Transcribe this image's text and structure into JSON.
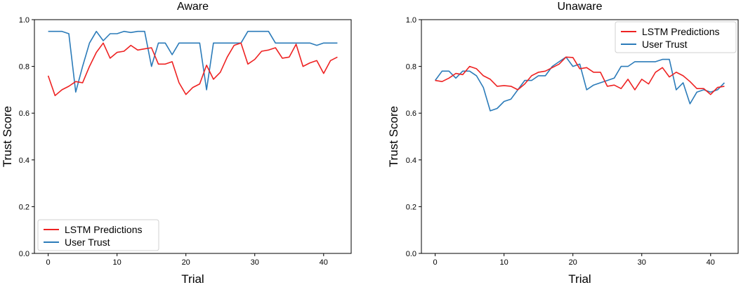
{
  "chart_data": [
    {
      "type": "line",
      "title": "Aware",
      "xlabel": "Trial",
      "ylabel": "Trust Score",
      "xlim": [
        -2,
        44
      ],
      "ylim": [
        0.0,
        1.0
      ],
      "xticks": [
        0,
        10,
        20,
        30,
        40
      ],
      "yticks": [
        0.0,
        0.2,
        0.4,
        0.6,
        0.8,
        1.0
      ],
      "grid": false,
      "legend_position": "bottom-left",
      "x": [
        0,
        1,
        2,
        3,
        4,
        5,
        6,
        7,
        8,
        9,
        10,
        11,
        12,
        13,
        14,
        15,
        16,
        17,
        18,
        19,
        20,
        21,
        22,
        23,
        24,
        25,
        26,
        27,
        28,
        29,
        30,
        31,
        32,
        33,
        34,
        35,
        36,
        37,
        38,
        39,
        40,
        41,
        42
      ],
      "series": [
        {
          "name": "LSTM Predictions",
          "color": "#ee2222",
          "values": [
            0.76,
            0.675,
            0.7,
            0.715,
            0.735,
            0.73,
            0.8,
            0.86,
            0.9,
            0.835,
            0.86,
            0.865,
            0.89,
            0.87,
            0.875,
            0.88,
            0.81,
            0.81,
            0.82,
            0.73,
            0.68,
            0.71,
            0.725,
            0.805,
            0.745,
            0.775,
            0.84,
            0.89,
            0.9,
            0.81,
            0.83,
            0.865,
            0.87,
            0.88,
            0.835,
            0.84,
            0.895,
            0.8,
            0.815,
            0.825,
            0.77,
            0.825,
            0.84
          ]
        },
        {
          "name": "User Trust",
          "color": "#2b7bb9",
          "values": [
            0.95,
            0.95,
            0.95,
            0.94,
            0.69,
            0.8,
            0.9,
            0.95,
            0.91,
            0.94,
            0.94,
            0.95,
            0.945,
            0.95,
            0.95,
            0.8,
            0.9,
            0.9,
            0.85,
            0.9,
            0.9,
            0.9,
            0.9,
            0.7,
            0.9,
            0.9,
            0.9,
            0.9,
            0.9,
            0.95,
            0.95,
            0.95,
            0.95,
            0.9,
            0.9,
            0.9,
            0.9,
            0.9,
            0.9,
            0.89,
            0.9,
            0.9,
            0.9
          ]
        }
      ]
    },
    {
      "type": "line",
      "title": "Unaware",
      "xlabel": "Trial",
      "ylabel": "Trust Score",
      "xlim": [
        -2,
        44
      ],
      "ylim": [
        0.0,
        1.0
      ],
      "xticks": [
        0,
        10,
        20,
        30,
        40
      ],
      "yticks": [
        0.0,
        0.2,
        0.4,
        0.6,
        0.8,
        1.0
      ],
      "grid": false,
      "legend_position": "top-right",
      "x": [
        0,
        1,
        2,
        3,
        4,
        5,
        6,
        7,
        8,
        9,
        10,
        11,
        12,
        13,
        14,
        15,
        16,
        17,
        18,
        19,
        20,
        21,
        22,
        23,
        24,
        25,
        26,
        27,
        28,
        29,
        30,
        31,
        32,
        33,
        34,
        35,
        36,
        37,
        38,
        39,
        40,
        41,
        42
      ],
      "series": [
        {
          "name": "LSTM Predictions",
          "color": "#ee2222",
          "values": [
            0.74,
            0.735,
            0.75,
            0.77,
            0.765,
            0.8,
            0.79,
            0.76,
            0.745,
            0.715,
            0.718,
            0.715,
            0.7,
            0.725,
            0.76,
            0.775,
            0.78,
            0.795,
            0.81,
            0.84,
            0.838,
            0.79,
            0.795,
            0.775,
            0.775,
            0.715,
            0.72,
            0.705,
            0.745,
            0.7,
            0.745,
            0.725,
            0.775,
            0.795,
            0.755,
            0.775,
            0.76,
            0.735,
            0.705,
            0.705,
            0.68,
            0.71,
            0.715
          ]
        },
        {
          "name": "User Trust",
          "color": "#2b7bb9",
          "values": [
            0.74,
            0.78,
            0.78,
            0.75,
            0.78,
            0.78,
            0.76,
            0.71,
            0.61,
            0.62,
            0.65,
            0.66,
            0.7,
            0.74,
            0.74,
            0.76,
            0.76,
            0.8,
            0.82,
            0.84,
            0.8,
            0.81,
            0.7,
            0.72,
            0.73,
            0.74,
            0.75,
            0.8,
            0.8,
            0.82,
            0.82,
            0.82,
            0.82,
            0.83,
            0.83,
            0.7,
            0.73,
            0.64,
            0.69,
            0.7,
            0.69,
            0.7,
            0.73
          ]
        }
      ]
    }
  ]
}
